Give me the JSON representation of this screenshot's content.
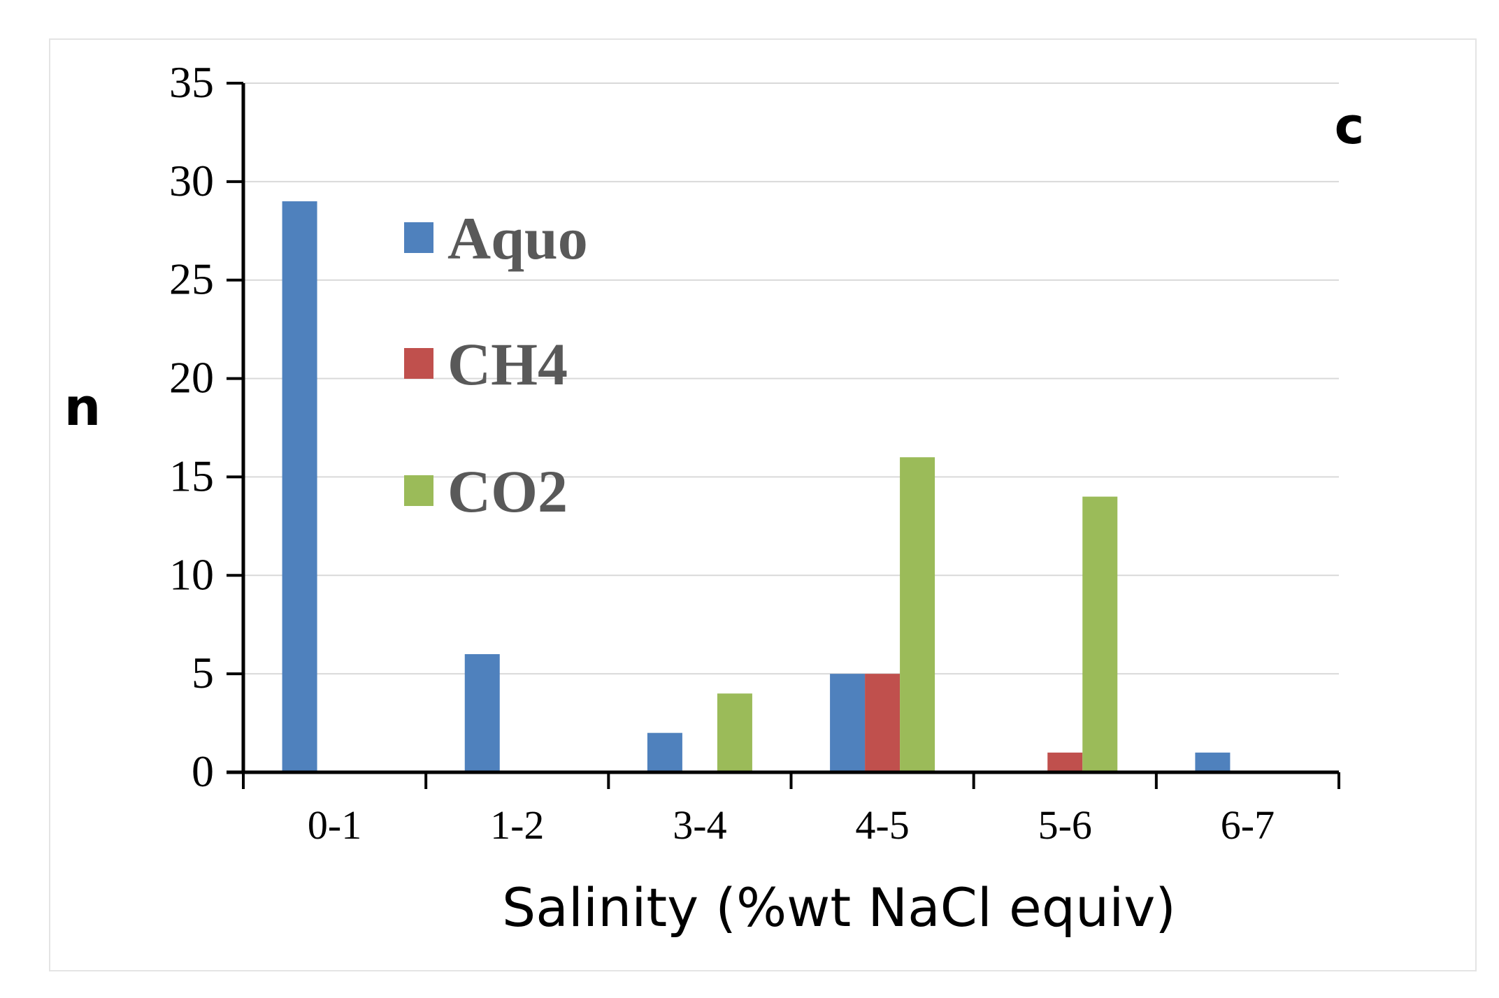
{
  "chart_data": {
    "type": "bar",
    "title": "",
    "panel_label": "c",
    "xlabel": "Salinity (%wt NaCl equiv)",
    "ylabel": "n",
    "ylim": [
      0,
      35
    ],
    "yticks": [
      0,
      5,
      10,
      15,
      20,
      25,
      30,
      35
    ],
    "grid": true,
    "legend_position": "top-left",
    "categories": [
      "0-1",
      "1-2",
      "3-4",
      "4-5",
      "5-6",
      "6-7"
    ],
    "series": [
      {
        "name": "Aquo",
        "color": "#4f81bd",
        "values": [
          29,
          6,
          2,
          5,
          0,
          1
        ]
      },
      {
        "name": "CH4",
        "color": "#c0504d",
        "values": [
          0,
          0,
          0,
          5,
          1,
          0
        ]
      },
      {
        "name": "CO2",
        "color": "#9bbb59",
        "values": [
          0,
          0,
          4,
          16,
          14,
          0
        ]
      }
    ]
  }
}
